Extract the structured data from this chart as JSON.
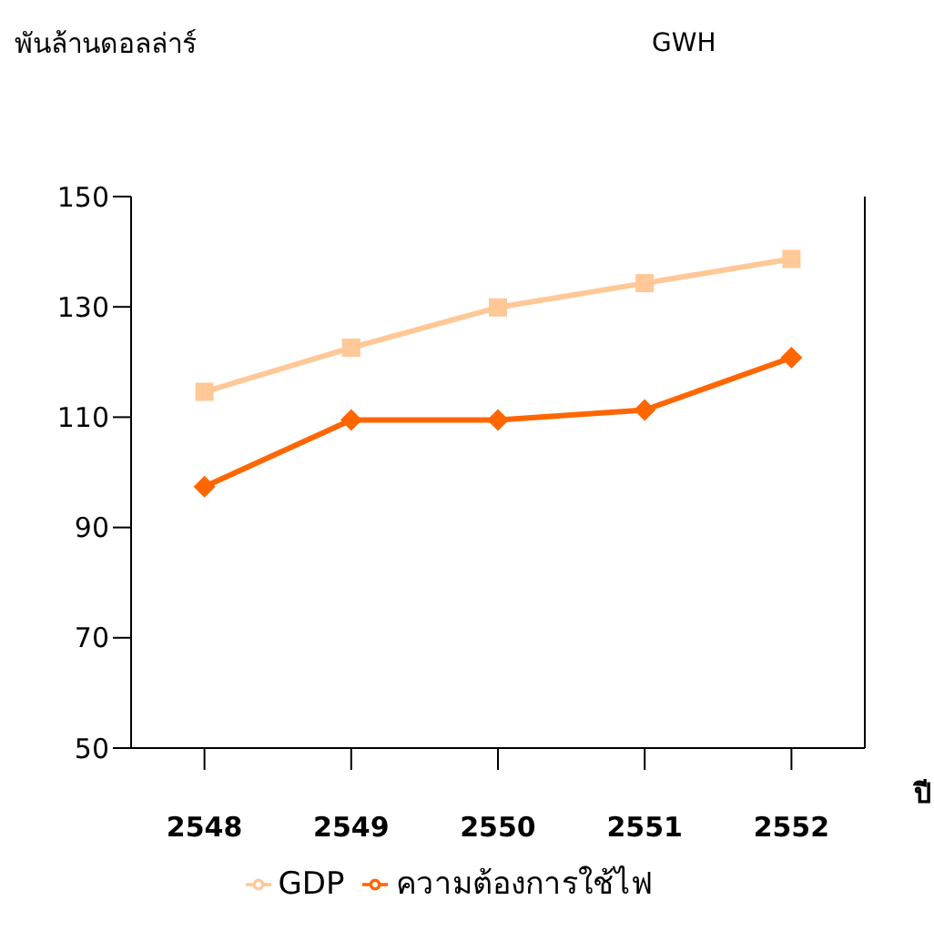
{
  "chart_data": {
    "type": "line",
    "ylabel": "พันล้านดอลล่าร์",
    "y2label": "GWH",
    "xlabel": "ปี",
    "categories": [
      "2548",
      "2549",
      "2550",
      "2551",
      "2552"
    ],
    "series": [
      {
        "name": "GDP",
        "color": "#ffc896",
        "values": [
          114.6,
          122.6,
          129.9,
          134.3,
          138.7
        ],
        "marker": "square"
      },
      {
        "name": "ความต้องการใช้ไฟ",
        "color": "#ff6600",
        "values": [
          97.4,
          109.5,
          109.5,
          111.3,
          120.8
        ],
        "marker": "diamond"
      }
    ],
    "ylim": [
      50,
      150
    ],
    "yticks": [
      50,
      70,
      90,
      110,
      130,
      150
    ],
    "legend": "bottom"
  }
}
